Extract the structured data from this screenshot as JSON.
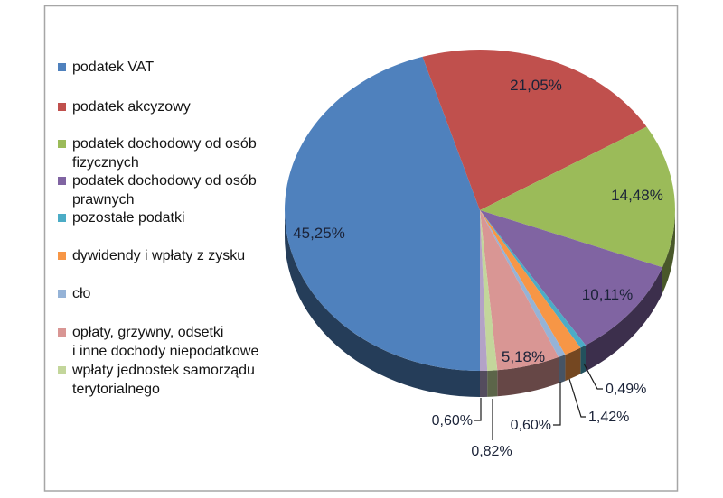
{
  "chart_data": {
    "type": "pie",
    "title": "",
    "effect": "3d",
    "legend_position": "left",
    "start_angle_deg": 90,
    "direction": "clockwise",
    "number_format": "percent-comma-decimal",
    "slices": [
      {
        "label": "podatek VAT",
        "value": 45.25,
        "display": "45,25%",
        "color": "#4F81BD",
        "in_legend": true
      },
      {
        "label": "podatek akcyzowy",
        "value": 21.05,
        "display": "21,05%",
        "color": "#C0504D",
        "in_legend": true
      },
      {
        "label": "podatek dochodowy od osób fizycznych",
        "value": 14.48,
        "display": "14,48%",
        "color": "#9BBB59",
        "in_legend": true
      },
      {
        "label": "podatek dochodowy od osób prawnych",
        "value": 10.11,
        "display": "10,11%",
        "color": "#8064A2",
        "in_legend": true
      },
      {
        "label": "pozostałe podatki",
        "value": 0.49,
        "display": "0,49%",
        "color": "#4BACC6",
        "in_legend": true
      },
      {
        "label": "dywidendy i wpłaty z zysku",
        "value": 1.42,
        "display": "1,42%",
        "color": "#F79646",
        "in_legend": true
      },
      {
        "label": "cło",
        "value": 0.6,
        "display": "0,60%",
        "color": "#95B3D7",
        "in_legend": true
      },
      {
        "label": "opłaty, grzywny, odsetki i inne dochody niepodatkowe",
        "value": 5.18,
        "display": "5,18%",
        "color": "#D99694",
        "in_legend": true
      },
      {
        "label": "wpłaty jednostek samorządu terytorialnego",
        "value": 0.82,
        "display": "0,82%",
        "color": "#C3D69B",
        "in_legend": true
      },
      {
        "label": "",
        "value": 0.6,
        "display": "0,60%",
        "color": "#B3A2C7",
        "in_legend": false
      }
    ]
  },
  "legend": {
    "items": [
      {
        "label": "podatek VAT",
        "color": "#4F81BD"
      },
      {
        "label": "podatek akcyzowy",
        "color": "#C0504D"
      },
      {
        "label": "podatek dochodowy od osób\nfizycznych",
        "color": "#9BBB59"
      },
      {
        "label": "podatek dochodowy od osób\nprawnych",
        "color": "#8064A2"
      },
      {
        "label": "pozostałe podatki",
        "color": "#4BACC6"
      },
      {
        "label": "dywidendy i wpłaty z zysku",
        "color": "#F79646"
      },
      {
        "label": "cło",
        "color": "#95B3D7"
      },
      {
        "label": "opłaty, grzywny, odsetki\ni inne dochody niepodatkowe",
        "color": "#D99694"
      },
      {
        "label": "wpłaty jednostek samorządu\nterytorialnego",
        "color": "#C3D69B"
      }
    ]
  },
  "colors": {
    "background": "#FFFFFF",
    "chart_border": "#A6A6A6",
    "data_label": "#1B2338",
    "leader_line": "#1A1A1A",
    "legend_text": "#141414"
  }
}
